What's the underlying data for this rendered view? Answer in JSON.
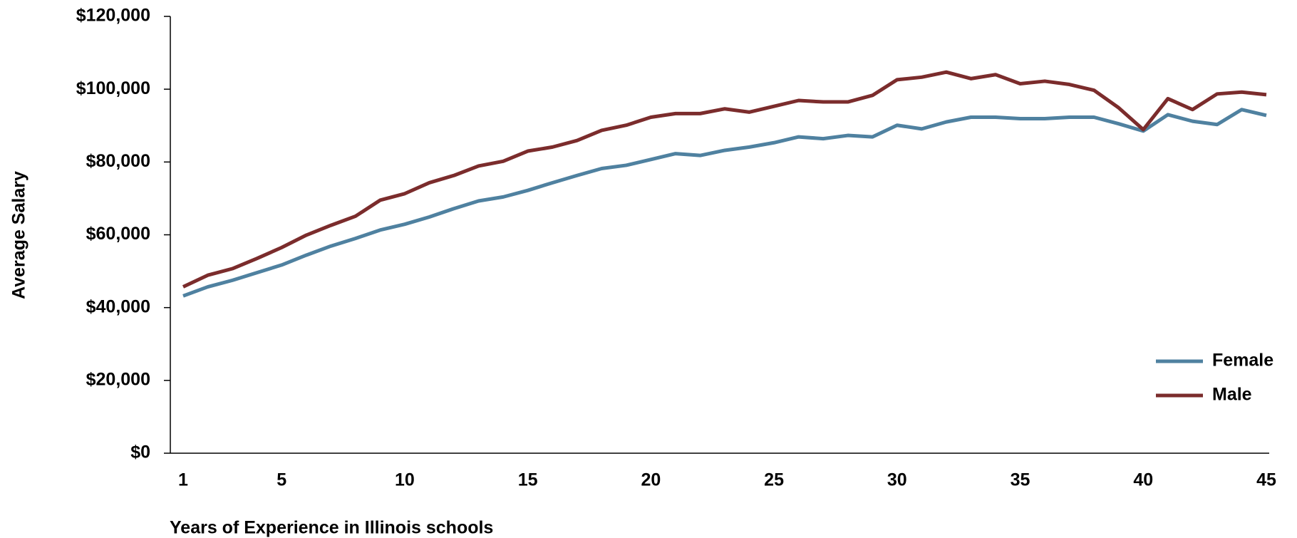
{
  "chart_data": {
    "type": "line",
    "xlabel": "Years of Experience in Illinois schools",
    "ylabel": "Average Salary",
    "x": [
      1,
      2,
      3,
      4,
      5,
      6,
      7,
      8,
      9,
      10,
      11,
      12,
      13,
      14,
      15,
      16,
      17,
      18,
      19,
      20,
      21,
      22,
      23,
      24,
      25,
      26,
      27,
      28,
      29,
      30,
      31,
      32,
      33,
      34,
      35,
      36,
      37,
      38,
      39,
      40,
      41,
      42,
      43,
      44,
      45
    ],
    "series": [
      {
        "name": "Female",
        "color": "#4f81a0",
        "values": [
          43200,
          45700,
          47500,
          49600,
          51700,
          54400,
          56900,
          59000,
          61300,
          62900,
          64900,
          67200,
          69300,
          70400,
          72200,
          74300,
          76300,
          78200,
          79100,
          80700,
          82300,
          81800,
          83200,
          84100,
          85300,
          86900,
          86400,
          87300,
          86900,
          90100,
          89100,
          91000,
          92300,
          92300,
          91900,
          91900,
          92300,
          92300,
          90500,
          88500,
          93000,
          91200,
          90300,
          94400,
          92800
        ]
      },
      {
        "name": "Male",
        "color": "#7b2c2c",
        "values": [
          45700,
          48900,
          50700,
          53500,
          56500,
          59900,
          62600,
          65100,
          69500,
          71300,
          74300,
          76300,
          78900,
          80200,
          83000,
          84100,
          85900,
          88700,
          90100,
          92300,
          93300,
          93300,
          94600,
          93700,
          95300,
          96900,
          96500,
          96500,
          98300,
          102600,
          103300,
          104700,
          102900,
          104000,
          101500,
          102200,
          101300,
          99700,
          94900,
          88900,
          97400,
          94400,
          98700,
          99200,
          98500
        ]
      }
    ],
    "xlim": [
      1,
      45
    ],
    "xticks": [
      1,
      5,
      10,
      15,
      20,
      25,
      30,
      35,
      40,
      45
    ],
    "ylim": [
      0,
      120000
    ],
    "yticks": [
      {
        "value": 0,
        "label": "$0"
      },
      {
        "value": 20000,
        "label": "$20,000"
      },
      {
        "value": 40000,
        "label": "$40,000"
      },
      {
        "value": 60000,
        "label": "$60,000"
      },
      {
        "value": 80000,
        "label": "$80,000"
      },
      {
        "value": 100000,
        "label": "$100,000"
      },
      {
        "value": 120000,
        "label": "$120,000"
      }
    ],
    "legend": "lower right",
    "grid": false
  }
}
